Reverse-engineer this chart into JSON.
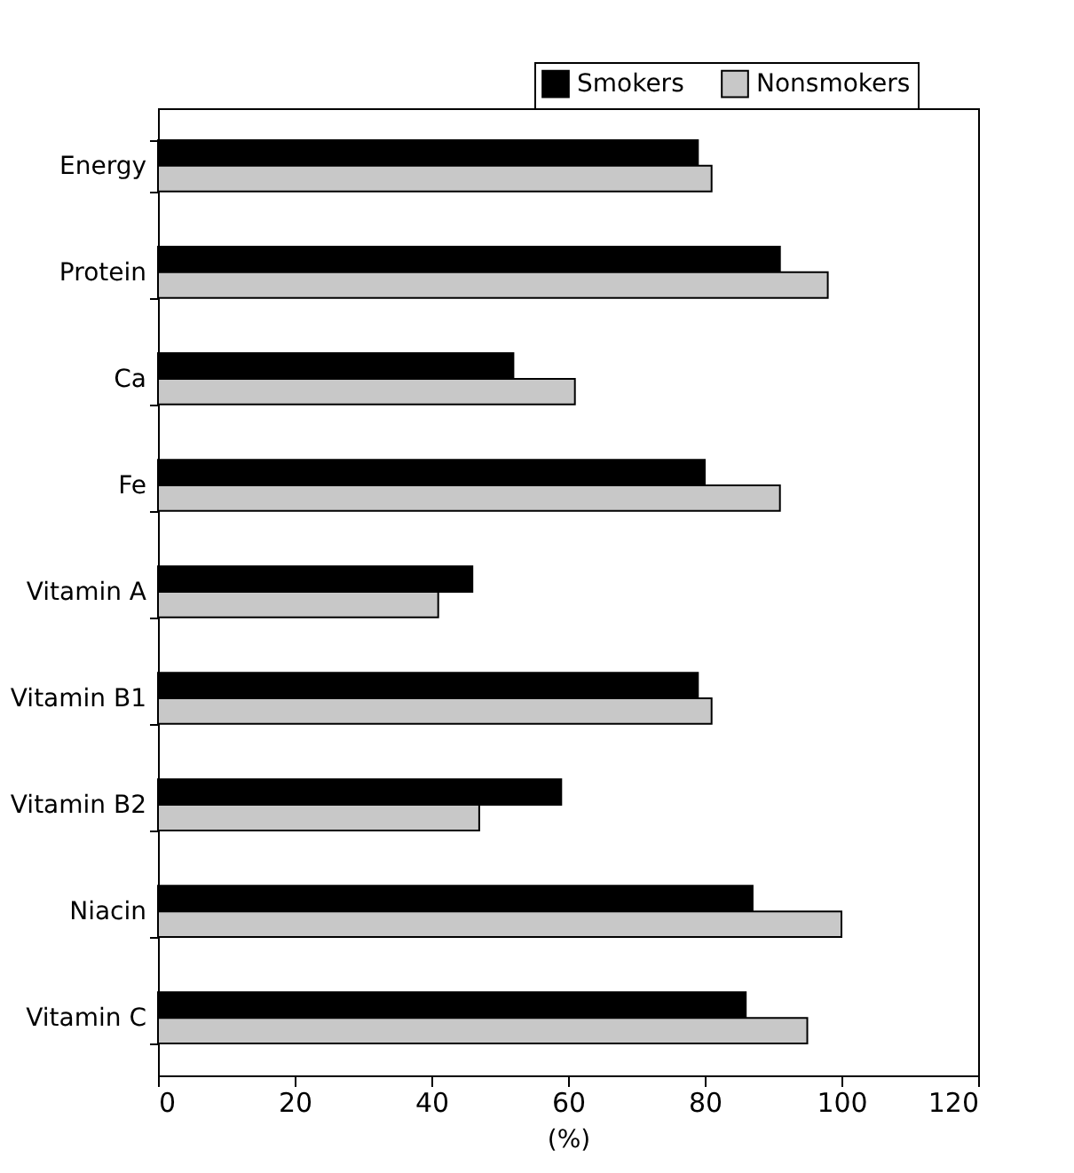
{
  "chart_data": {
    "type": "bar",
    "orientation": "horizontal",
    "xlabel": "(%)",
    "categories": [
      "Energy",
      "Protein",
      "Ca",
      "Fe",
      "Vitamin A",
      "Vitamin B1",
      "Vitamin B2",
      "Niacin",
      "Vitamin C"
    ],
    "series": [
      {
        "name": "Smokers",
        "color": "#000000",
        "values": [
          79,
          91,
          52,
          80,
          46,
          79,
          59,
          87,
          86
        ]
      },
      {
        "name": "Nonsmokers",
        "color": "#c8c8c8",
        "values": [
          81,
          98,
          61,
          91,
          41,
          81,
          47,
          100,
          95
        ]
      }
    ],
    "xlim": [
      0,
      120
    ],
    "xticks": [
      0,
      20,
      40,
      60,
      80,
      100,
      120
    ],
    "grid": false,
    "legend": "top right"
  }
}
